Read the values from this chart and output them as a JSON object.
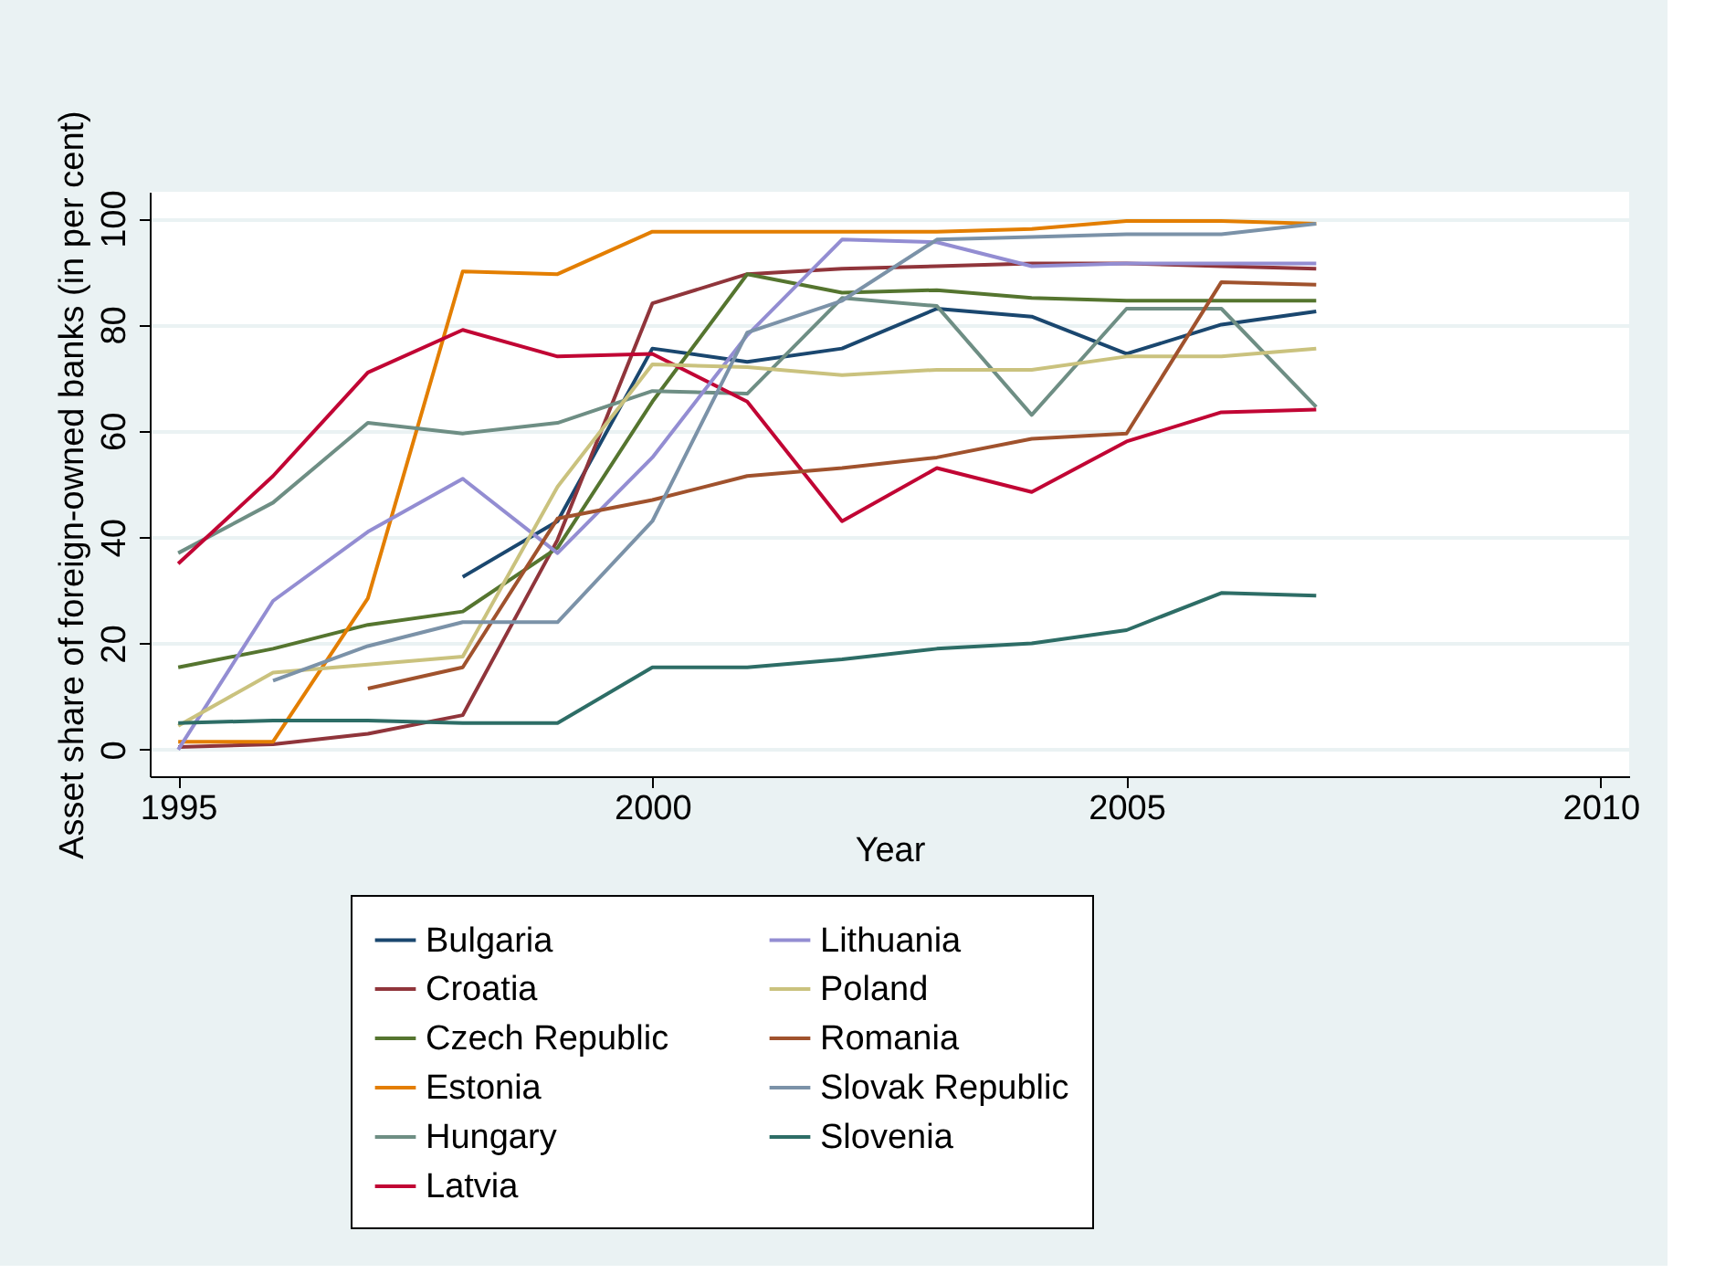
{
  "chart_data": {
    "type": "line",
    "xlabel": "Year",
    "ylabel": "Asset share of foreign-owned banks (in per cent)",
    "x": [
      1995,
      1996,
      1997,
      1998,
      1999,
      2000,
      2001,
      2002,
      2003,
      2004,
      2005,
      2006,
      2007
    ],
    "xlim": [
      1994.7,
      2010.3
    ],
    "xticks": [
      1995,
      2000,
      2005,
      2010
    ],
    "ylim": [
      -5,
      105
    ],
    "yticks": [
      0,
      20,
      40,
      60,
      80,
      100
    ],
    "grid": "y",
    "legend": "bottom",
    "marker": "none",
    "line_style": "solid",
    "series": [
      {
        "name": "Bulgaria",
        "color": "#1a476f",
        "values": [
          null,
          null,
          null,
          32.5,
          43,
          75.5,
          73,
          75.5,
          83,
          81.5,
          74.5,
          80,
          82.5
        ]
      },
      {
        "name": "Croatia",
        "color": "#90353b",
        "values": [
          0.5,
          1,
          3,
          6.5,
          39.5,
          84,
          89.5,
          90.5,
          91,
          91.5,
          91.5,
          91,
          90.5
        ]
      },
      {
        "name": "Czech Republic",
        "color": "#55752f",
        "values": [
          15.5,
          19,
          23.5,
          26,
          38,
          65.5,
          89.5,
          86,
          86.5,
          85,
          84.5,
          84.5,
          84.5
        ]
      },
      {
        "name": "Estonia",
        "color": "#e37e00",
        "values": [
          1.5,
          1.5,
          28.5,
          90,
          89.5,
          97.5,
          97.5,
          97.5,
          97.5,
          98,
          99.5,
          99.5,
          99
        ]
      },
      {
        "name": "Hungary",
        "color": "#6e8e84",
        "values": [
          37,
          46.5,
          61.5,
          59.5,
          61.5,
          67.5,
          67,
          85,
          83.5,
          63,
          83,
          83,
          64.5
        ]
      },
      {
        "name": "Latvia",
        "color": "#c10534",
        "values": [
          35,
          51.5,
          71,
          79,
          74,
          74.5,
          65.5,
          43,
          53,
          48.5,
          58,
          63.5,
          64
        ]
      },
      {
        "name": "Lithuania",
        "color": "#938dd2",
        "values": [
          0,
          28,
          41,
          51,
          37,
          55,
          78,
          96,
          95.5,
          91,
          91.5,
          91.5,
          91.5
        ]
      },
      {
        "name": "Poland",
        "color": "#cac27e",
        "values": [
          4.5,
          14.5,
          16,
          17.5,
          49.5,
          72.5,
          72,
          70.5,
          71.5,
          71.5,
          74,
          74,
          75.5
        ]
      },
      {
        "name": "Romania",
        "color": "#a0522d",
        "values": [
          null,
          null,
          11.5,
          15.5,
          43.5,
          47,
          51.5,
          53,
          55,
          58.5,
          59.5,
          88,
          87.5
        ]
      },
      {
        "name": "Slovak Republic",
        "color": "#7b92a8",
        "values": [
          null,
          13,
          19.5,
          24,
          24,
          43,
          78.5,
          84.5,
          96,
          96.5,
          97,
          97,
          99
        ]
      },
      {
        "name": "Slovenia",
        "color": "#2d6d66",
        "values": [
          5,
          5.5,
          5.5,
          5,
          5,
          15.5,
          15.5,
          17,
          19,
          20,
          22.5,
          29.5,
          29
        ]
      }
    ]
  }
}
